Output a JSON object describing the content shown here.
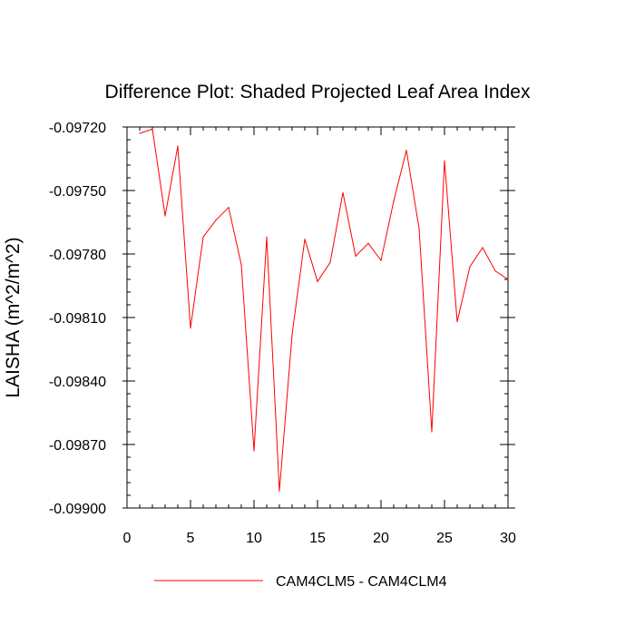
{
  "chart_data": {
    "type": "line",
    "title": "Difference Plot: Shaded Projected Leaf Area Index",
    "xlabel": "",
    "ylabel": "LAISHA  (m^2/m^2)",
    "xlim": [
      0,
      30
    ],
    "ylim": [
      -0.099,
      -0.0972
    ],
    "x_ticks": [
      0,
      5,
      10,
      15,
      20,
      25,
      30
    ],
    "x_tick_labels": [
      "0",
      "5",
      "10",
      "15",
      "20",
      "25",
      "30"
    ],
    "y_ticks": [
      -0.0972,
      -0.0975,
      -0.0978,
      -0.0981,
      -0.0984,
      -0.0987,
      -0.099
    ],
    "y_tick_labels": [
      "-0.09720",
      "-0.09750",
      "-0.09780",
      "-0.09810",
      "-0.09840",
      "-0.09870",
      "-0.09900"
    ],
    "grid": false,
    "legend_position": "bottom",
    "series": [
      {
        "name": "CAM4CLM5 - CAM4CLM4",
        "color": "#ff0000",
        "x": [
          1,
          2,
          3,
          4,
          5,
          6,
          7,
          8,
          9,
          10,
          11,
          12,
          13,
          14,
          15,
          16,
          17,
          18,
          19,
          20,
          21,
          22,
          23,
          24,
          25,
          26,
          27,
          28,
          29,
          30
        ],
        "values": [
          -0.09723,
          -0.09721,
          -0.09762,
          -0.09729,
          -0.09815,
          -0.09772,
          -0.09764,
          -0.09758,
          -0.09785,
          -0.09873,
          -0.09772,
          -0.09892,
          -0.09818,
          -0.09773,
          -0.09793,
          -0.09784,
          -0.09751,
          -0.09781,
          -0.09775,
          -0.09783,
          -0.09755,
          -0.09731,
          -0.09768,
          -0.09864,
          -0.09736,
          -0.09812,
          -0.09786,
          -0.09777,
          -0.09788,
          -0.09792
        ]
      }
    ]
  }
}
